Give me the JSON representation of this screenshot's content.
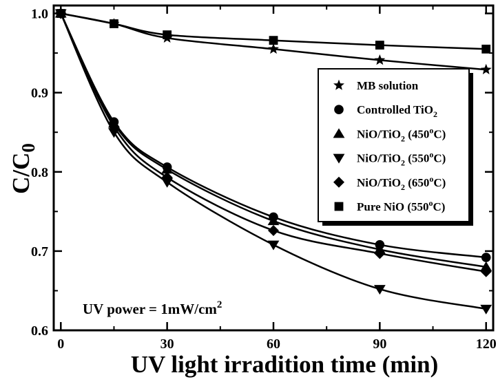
{
  "chart_data": {
    "type": "line",
    "title": "",
    "xlabel": "UV light irradition time (min)",
    "ylabel": {
      "main": "C/C",
      "sub": "0"
    },
    "xlim": [
      -2,
      122
    ],
    "ylim": [
      0.6,
      1.01
    ],
    "x_ticks": [
      0,
      30,
      60,
      90,
      120
    ],
    "y_ticks": [
      0.6,
      0.7,
      0.8,
      0.9,
      1.0
    ],
    "y_tick_labels": [
      "0.6",
      "0.7",
      "0.8",
      "0.9",
      "1.0"
    ],
    "x": [
      0,
      15,
      30,
      60,
      90,
      120
    ],
    "grid": false,
    "legend_position": "top-right",
    "annotation": {
      "text": "UV power = 1mW/cm",
      "sup": "2",
      "position": "bottom-left"
    },
    "series": [
      {
        "name": "MB solution",
        "legend": {
          "pre": "MB solution",
          "sub": "",
          "mid": "",
          "sup": "",
          "post": ""
        },
        "marker": "star",
        "values": [
          1.0,
          0.987,
          0.969,
          0.955,
          0.941,
          0.929
        ]
      },
      {
        "name": "Controlled TiO2",
        "legend": {
          "pre": "Controlled TiO",
          "sub": "2",
          "mid": "",
          "sup": "",
          "post": ""
        },
        "marker": "circle",
        "values": [
          1.0,
          0.863,
          0.806,
          0.743,
          0.708,
          0.692
        ]
      },
      {
        "name": "NiO/TiO2 (450oC)",
        "legend": {
          "pre": "NiO/TiO",
          "sub": "2",
          "mid": " (450",
          "sup": "o",
          "post": "C)"
        },
        "marker": "triangle-up",
        "values": [
          1.0,
          0.861,
          0.803,
          0.738,
          0.702,
          0.68
        ]
      },
      {
        "name": "NiO/TiO2 (550oC)",
        "legend": {
          "pre": "NiO/TiO",
          "sub": "2",
          "mid": " (550",
          "sup": "o",
          "post": "C)"
        },
        "marker": "triangle-down",
        "values": [
          1.0,
          0.85,
          0.787,
          0.708,
          0.652,
          0.627
        ]
      },
      {
        "name": "NiO/TiO2 (650oC)",
        "legend": {
          "pre": "NiO/TiO",
          "sub": "2",
          "mid": " (650",
          "sup": "o",
          "post": "C)"
        },
        "marker": "diamond",
        "values": [
          1.0,
          0.857,
          0.793,
          0.726,
          0.697,
          0.674
        ]
      },
      {
        "name": "Pure NiO (550oC)",
        "legend": {
          "pre": "Pure NiO (550",
          "sub": "",
          "mid": "",
          "sup": "o",
          "post": "C)"
        },
        "marker": "square",
        "values": [
          1.0,
          0.987,
          0.973,
          0.966,
          0.96,
          0.955
        ]
      }
    ]
  }
}
